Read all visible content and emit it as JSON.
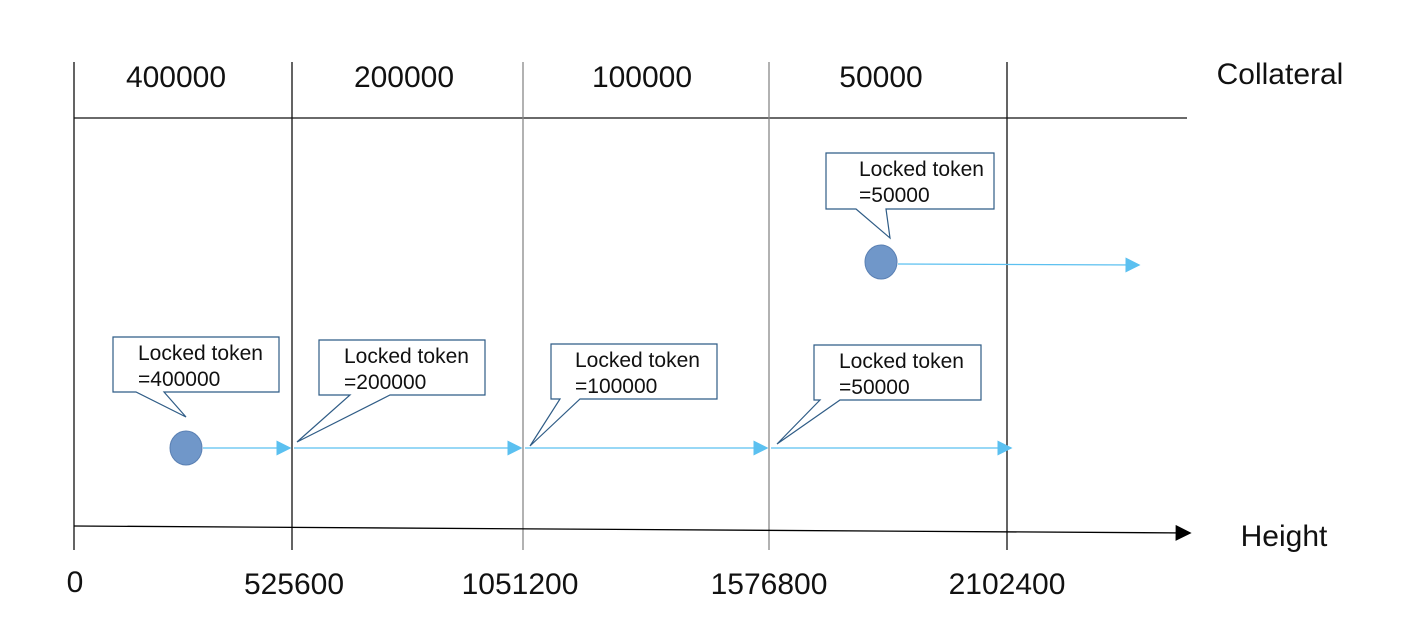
{
  "header": {
    "collateral_label": "Collateral",
    "periods": [
      "400000",
      "200000",
      "100000",
      "50000"
    ]
  },
  "axis": {
    "label": "Height",
    "ticks": [
      "0",
      "525600",
      "1051200",
      "1576800",
      "2102400"
    ]
  },
  "callouts": [
    {
      "line1": "Locked token",
      "line2": "=400000"
    },
    {
      "line1": "Locked token",
      "line2": "=200000"
    },
    {
      "line1": "Locked token",
      "line2": "=100000"
    },
    {
      "line1": "Locked token",
      "line2": "=50000"
    },
    {
      "line1": "Locked token",
      "line2": "=50000"
    }
  ],
  "colors": {
    "arrow": "#5bc0f0",
    "dot": "#7097c9",
    "callout_border": "#2f5c86",
    "line": "#111111"
  }
}
